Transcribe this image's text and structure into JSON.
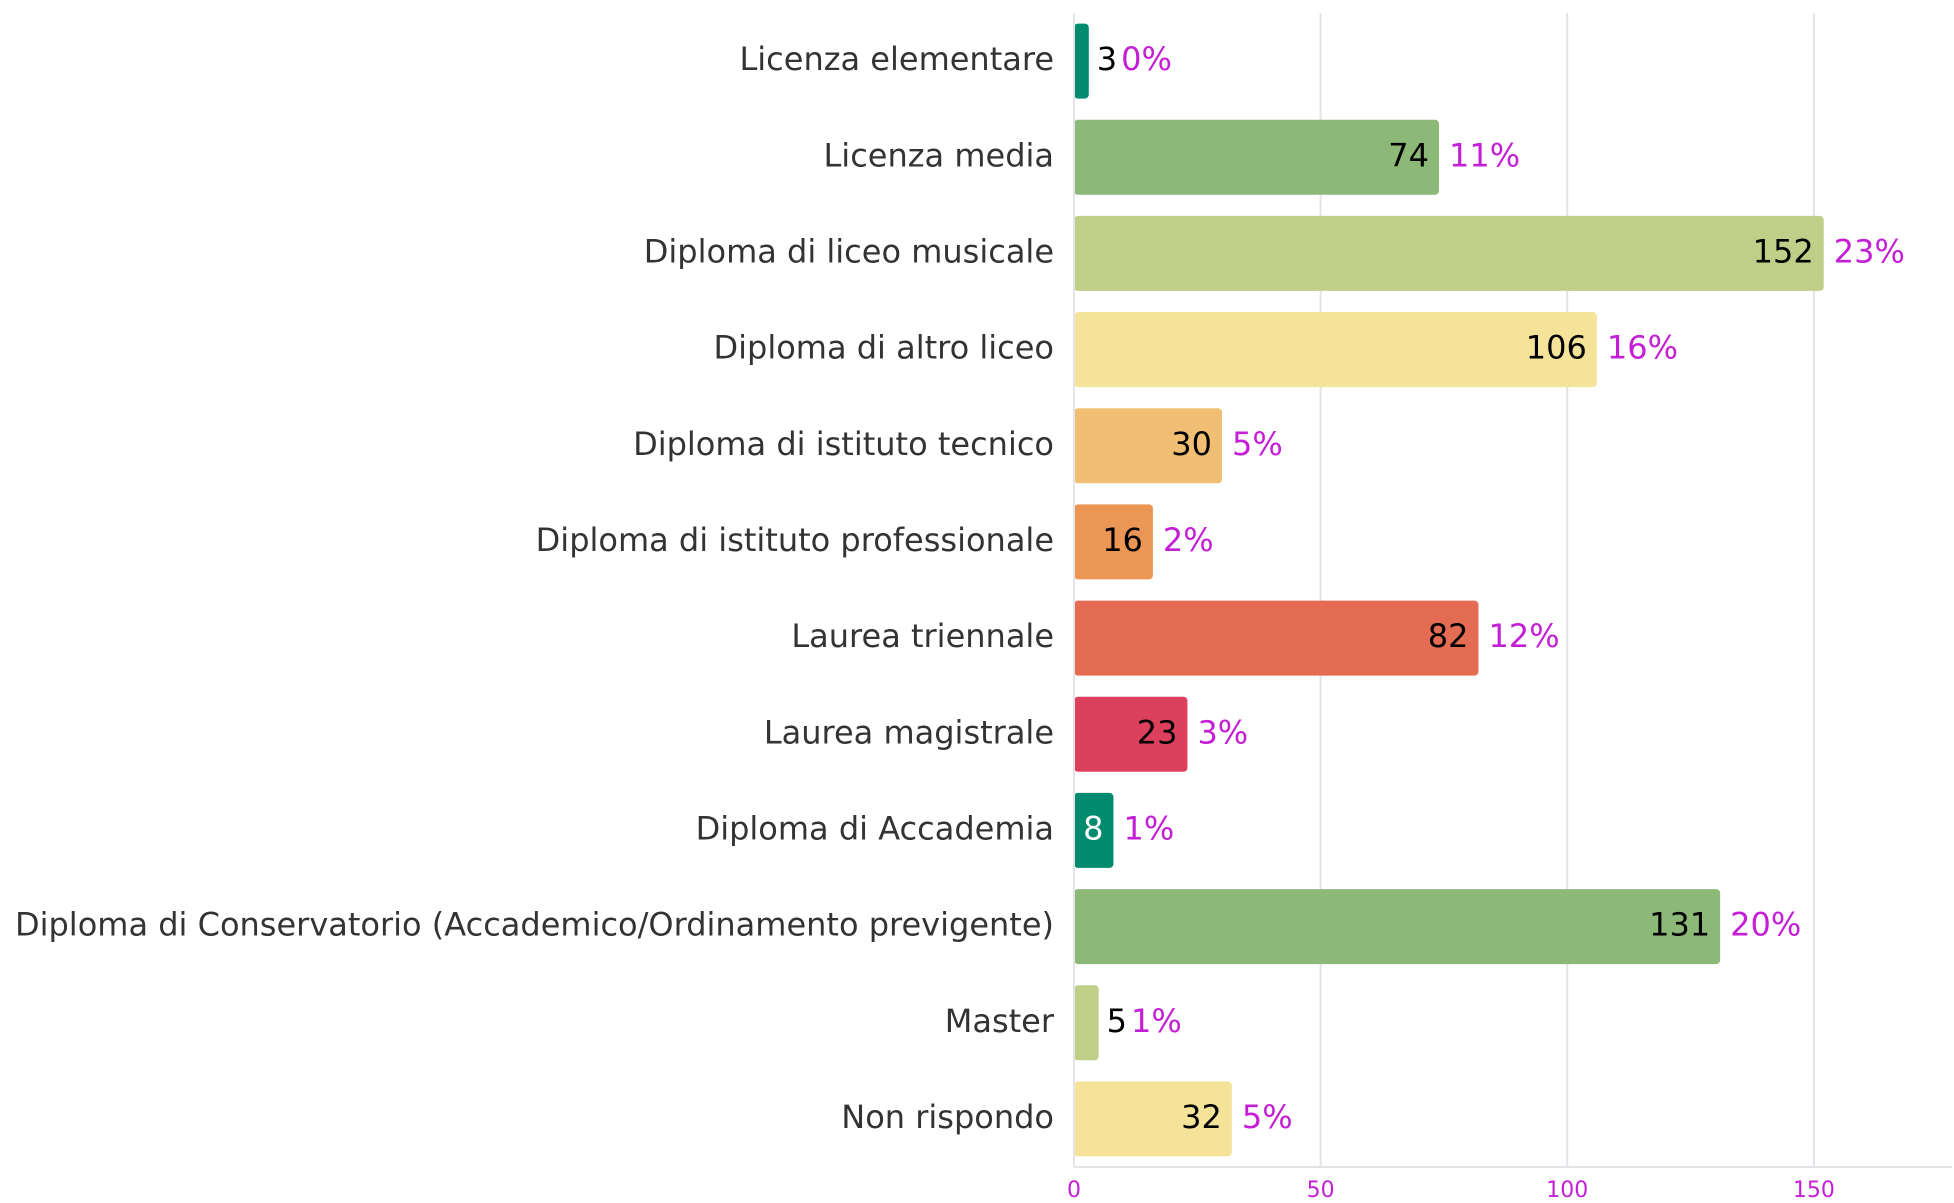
{
  "chart_data": {
    "type": "bar",
    "orientation": "horizontal",
    "categories": [
      "Licenza elementare",
      "Licenza media",
      "Diploma di liceo musicale",
      "Diploma di altro liceo",
      "Diploma di istituto tecnico",
      "Diploma di istituto professionale",
      "Laurea triennale",
      "Laurea magistrale",
      "Diploma di Accademia",
      "Diploma di Conservatorio (Accademico/Ordinamento previgente)",
      "Master",
      "Non rispondo"
    ],
    "values": [
      3,
      74,
      152,
      106,
      30,
      16,
      82,
      23,
      8,
      131,
      5,
      32
    ],
    "colors": [
      "#008a6e",
      "#8cb978",
      "#c0cf88",
      "#f5e39a",
      "#f0bf74",
      "#ec9656",
      "#e36c52",
      "#dd405c",
      "#008a6e",
      "#8cb978",
      "#c0cf88",
      "#f5e39a"
    ],
    "value_label_colors": [
      "#000000",
      "#000000",
      "#000000",
      "#000000",
      "#000000",
      "#000000",
      "#000000",
      "#000000",
      "#ffffff",
      "#000000",
      "#000000",
      "#000000"
    ],
    "percentages": [
      0,
      11,
      23,
      16,
      5,
      2,
      12,
      3,
      1,
      20,
      1,
      5
    ],
    "percentage_labels": [
      "0%",
      "11%",
      "23%",
      "16%",
      "5%",
      "2%",
      "12%",
      "3%",
      "1%",
      "20%",
      "1%",
      "5%"
    ],
    "percentage_color": "#c41fd6",
    "xlim": [
      0,
      178
    ],
    "xticks": [
      0,
      50,
      100,
      150
    ],
    "grid": true
  }
}
